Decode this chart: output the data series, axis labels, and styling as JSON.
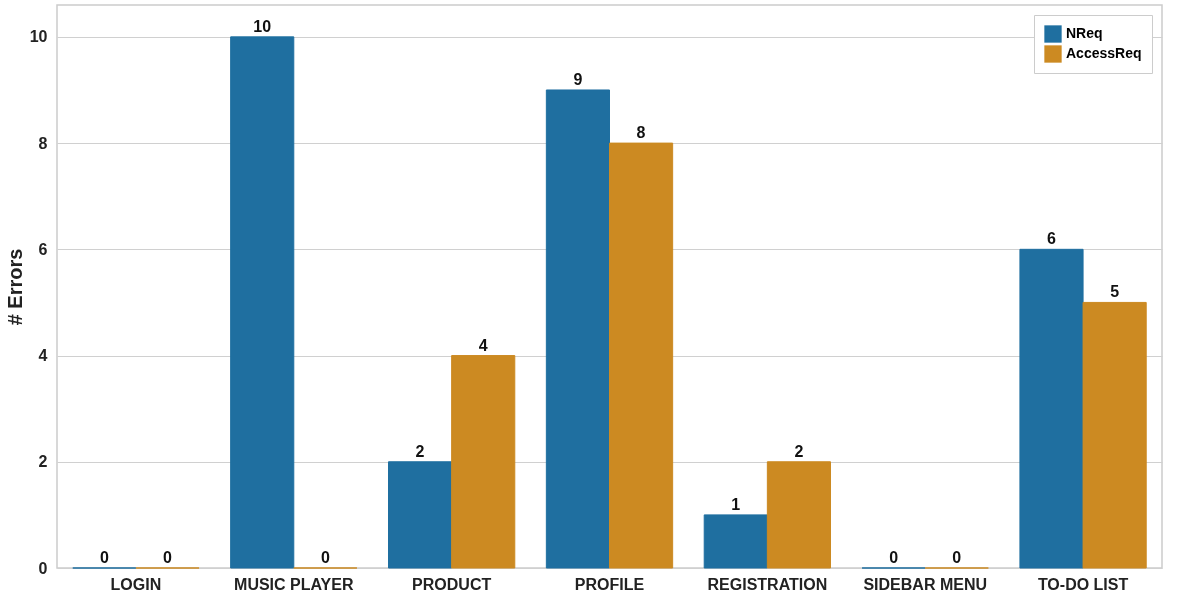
{
  "chart_data": {
    "type": "bar",
    "ylabel": "# Errors",
    "categories": [
      "LOGIN",
      "MUSIC PLAYER",
      "PRODUCT",
      "PROFILE",
      "REGISTRATION",
      "SIDEBAR MENU",
      "TO-DO LIST"
    ],
    "series": [
      {
        "name": "NReq",
        "color": "#1f6fa0",
        "values": [
          0,
          10,
          2,
          9,
          1,
          0,
          6
        ]
      },
      {
        "name": "AccessReq",
        "color": "#cc8a22",
        "values": [
          0,
          0,
          4,
          8,
          2,
          0,
          5
        ]
      }
    ],
    "ylim": [
      0,
      10.6
    ],
    "yticks": [
      0,
      2,
      4,
      6,
      8,
      10
    ],
    "grid": "y",
    "legend": "top right",
    "data_labels": true
  }
}
